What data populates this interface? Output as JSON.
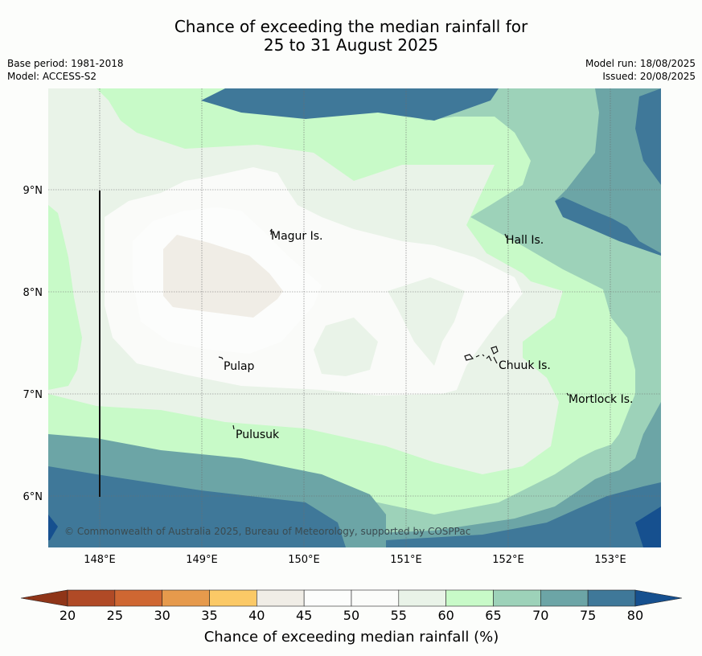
{
  "title": {
    "line1": "Chance of exceeding the median rainfall for",
    "line2": "25 to 31 August 2025"
  },
  "meta": {
    "base_period": "Base period: 1981-2018",
    "model": "Model: ACCESS-S2",
    "model_run": "Model run: 18/08/2025",
    "issued": "Issued: 20/08/2025"
  },
  "map": {
    "lon_ticks": [
      "148°E",
      "149°E",
      "150°E",
      "151°E",
      "152°E",
      "153°E"
    ],
    "lat_ticks": [
      "9°N",
      "8°N",
      "7°N",
      "6°N"
    ],
    "places": [
      {
        "name": "Magur Is.",
        "lon": 149.65,
        "lat": 8.55
      },
      {
        "name": "Hall Is.",
        "lon": 151.97,
        "lat": 8.55
      },
      {
        "name": "Pulap",
        "lon": 149.2,
        "lat": 7.35
      },
      {
        "name": "Chuuk Is.",
        "lon": 151.8,
        "lat": 7.4
      },
      {
        "name": "Mortlock Is.",
        "lon": 152.6,
        "lat": 7.0
      },
      {
        "name": "Pulusuk",
        "lon": 149.3,
        "lat": 6.68
      }
    ],
    "copyright": "© Commonwealth of Australia 2025, Bureau of Meteorology, supported by COSPPac"
  },
  "colorbar": {
    "title": "Chance of exceeding median rainfall (%)",
    "labels": [
      "20",
      "25",
      "30",
      "35",
      "40",
      "45",
      "50",
      "55",
      "60",
      "65",
      "70",
      "75",
      "80"
    ],
    "colors": [
      "#b04a26",
      "#cf6732",
      "#e69a4c",
      "#fbc966",
      "#f0ede6",
      "#fcfdfc",
      "#fbfcfa",
      "#e9f3e8",
      "#c8fac8",
      "#9dd2b9",
      "#6ca5a6",
      "#3f7899"
    ],
    "under_color": "#8f3518",
    "over_color": "#16508f"
  }
}
